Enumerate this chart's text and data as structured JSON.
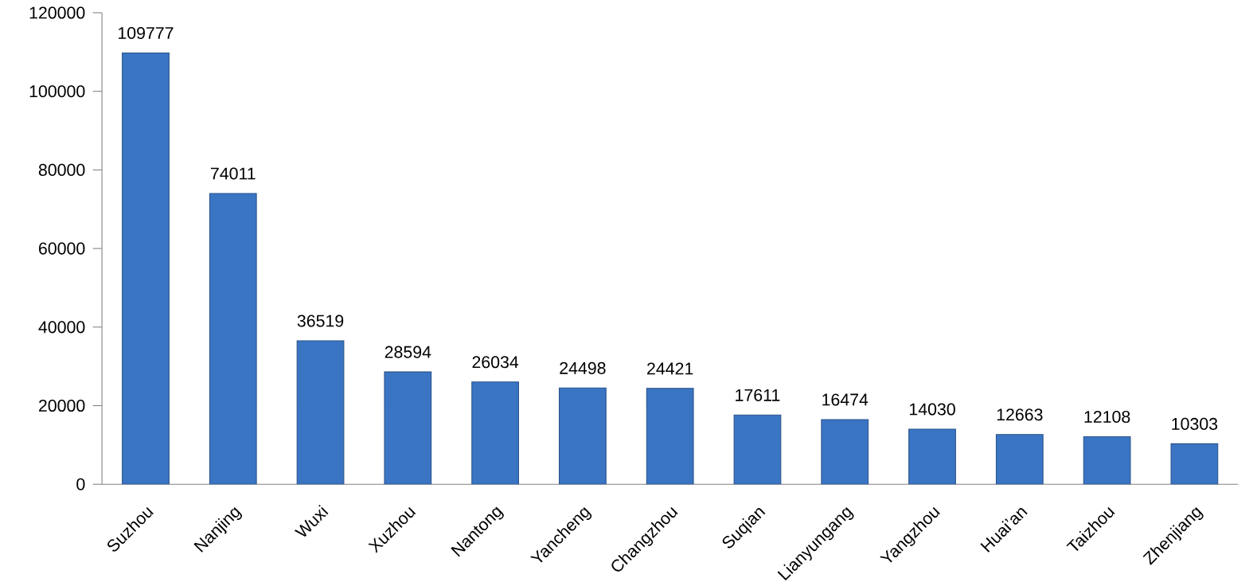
{
  "chart_data": {
    "type": "bar",
    "categories": [
      "Suzhou",
      "Nanjing",
      "Wuxi",
      "Xuzhou",
      "Nantong",
      "Yancheng",
      "Changzhou",
      "Suqian",
      "Lianyungang",
      "Yangzhou",
      "Huai’an",
      "Taizhou",
      "Zhenjiang"
    ],
    "values": [
      109777,
      74011,
      36519,
      28594,
      26034,
      24498,
      24421,
      17611,
      16474,
      14030,
      12663,
      12108,
      10303
    ],
    "color": "#3a75c4",
    "ylim": [
      0,
      120000
    ],
    "yticks": [
      0,
      20000,
      40000,
      60000,
      80000,
      100000,
      120000
    ],
    "data_labels": true
  }
}
